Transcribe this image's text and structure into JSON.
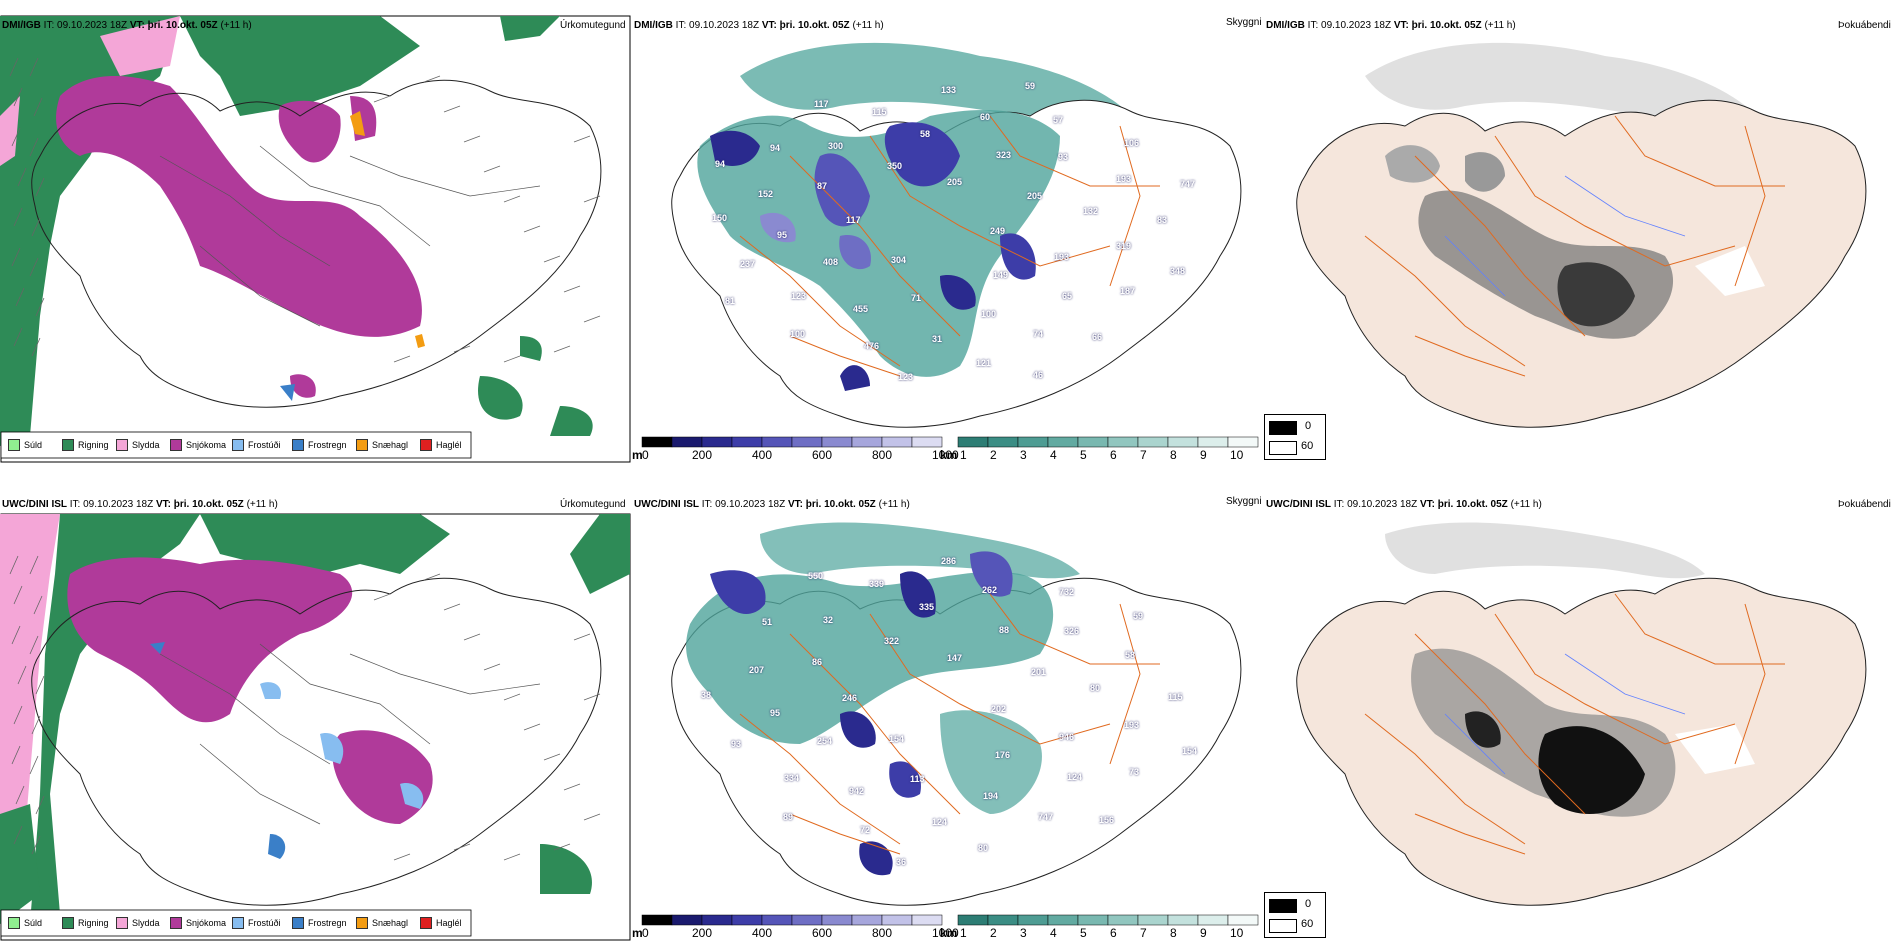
{
  "rows": [
    {
      "model": "DMI/IGB",
      "it": "IT: 09.10.2023 18Z",
      "vt": "VT: þri. 10.okt. 05Z",
      "lead": "(+11 h)",
      "labels": [
        "249",
        "304",
        "205",
        "149",
        "117",
        "205",
        "71",
        "350",
        "193",
        "408",
        "323",
        "100",
        "87",
        "132",
        "455",
        "58",
        "65",
        "95",
        "93",
        "31",
        "300",
        "319",
        "123",
        "60",
        "74",
        "152",
        "193",
        "476",
        "115",
        "187",
        "237",
        "57",
        "121",
        "94",
        "83",
        "100",
        "133",
        "66",
        "150",
        "106",
        "123",
        "117",
        "348",
        "81",
        "59",
        "46",
        "94",
        "747"
      ]
    },
    {
      "model": "UWC/DINI ISL",
      "it": "IT: 09.10.2023 18Z",
      "vt": "VT: þri. 10.okt. 05Z",
      "lead": "(+11 h)",
      "labels": [
        "202",
        "154",
        "147",
        "176",
        "246",
        "201",
        "113",
        "322",
        "946",
        "254",
        "88",
        "194",
        "86",
        "80",
        "942",
        "335",
        "124",
        "95",
        "326",
        "124",
        "32",
        "193",
        "334",
        "262",
        "747",
        "207",
        "58",
        "72",
        "339",
        "73",
        "93",
        "732",
        "80",
        "51",
        "115",
        "89",
        "286",
        "156",
        "38",
        "59",
        "36",
        "550",
        "154"
      ]
    }
  ],
  "panel_titles": {
    "precip_type": "Úrkomutegund",
    "visibility": "Skyggni",
    "fog": "Þokuábendi"
  },
  "precip_legend": [
    {
      "label": "Súld",
      "color": "#90ee90"
    },
    {
      "label": "Rigning",
      "color": "#2e8b57"
    },
    {
      "label": "Slydda",
      "color": "#f4a6d7"
    },
    {
      "label": "Snjókoma",
      "color": "#b03a9a"
    },
    {
      "label": "Frostúði",
      "color": "#87bdf0"
    },
    {
      "label": "Frostregn",
      "color": "#3a7fc8"
    },
    {
      "label": "Snæhagl",
      "color": "#f39c12"
    },
    {
      "label": "Haglél",
      "color": "#e02020"
    }
  ],
  "visibility_scale": {
    "m_unit": "m",
    "m_ticks": [
      "0",
      "200",
      "400",
      "600",
      "800",
      "1000"
    ],
    "km_unit": "km",
    "km_ticks": [
      "1",
      "2",
      "3",
      "4",
      "5",
      "6",
      "7",
      "8",
      "9",
      "10"
    ],
    "m_colors": [
      "#000000",
      "#1a1a6e",
      "#2a2a8e",
      "#3d3da8",
      "#5555b8",
      "#6e6ec4",
      "#8a8ad0",
      "#a6a6dc",
      "#c2c2e8",
      "#dcdcf2"
    ],
    "km_colors": [
      "#2d7d74",
      "#3b8d84",
      "#4e9c93",
      "#62aaa1",
      "#79b8b0",
      "#91c6bf",
      "#aad4ce",
      "#c3e1dd",
      "#dceeeb",
      "#f3f9f8"
    ]
  },
  "fog_legend": {
    "high": "0",
    "low": "60",
    "high_color": "#000000",
    "low_color": "#ffffff"
  },
  "colors": {
    "rain": "#2e8b57",
    "snow": "#b03a9a",
    "sleet": "#f4a6d7",
    "road": "#e06a20",
    "land": "#f5e6dc"
  }
}
